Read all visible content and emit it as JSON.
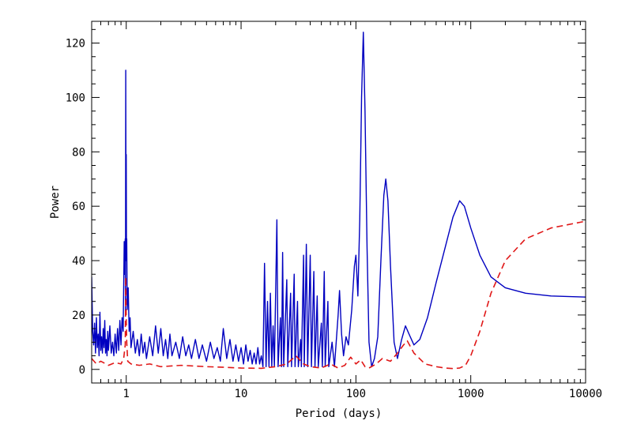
{
  "chart_data": {
    "type": "line",
    "title": "",
    "xlabel": "Period (days)",
    "ylabel": "Power",
    "xscale": "log",
    "xlim": [
      0.5,
      10000
    ],
    "ylim": [
      -5,
      128
    ],
    "x_ticks": [
      1,
      10,
      100,
      1000,
      10000
    ],
    "x_tick_labels": [
      "1",
      "10",
      "100",
      "1000",
      "10000"
    ],
    "y_ticks": [
      0,
      20,
      40,
      60,
      80,
      100,
      120
    ],
    "y_tick_labels": [
      "0",
      "20",
      "40",
      "60",
      "80",
      "100",
      "120"
    ],
    "grid": false,
    "legend": "none",
    "series": [
      {
        "style": "solid",
        "color": "#0000c0",
        "points": [
          [
            0.5,
            34
          ],
          [
            0.51,
            14
          ],
          [
            0.52,
            9
          ],
          [
            0.53,
            17
          ],
          [
            0.54,
            6
          ],
          [
            0.55,
            19
          ],
          [
            0.56,
            8
          ],
          [
            0.57,
            13
          ],
          [
            0.58,
            5
          ],
          [
            0.59,
            21
          ],
          [
            0.6,
            7
          ],
          [
            0.61,
            12
          ],
          [
            0.62,
            6
          ],
          [
            0.63,
            15
          ],
          [
            0.64,
            8
          ],
          [
            0.65,
            18
          ],
          [
            0.66,
            6
          ],
          [
            0.67,
            11
          ],
          [
            0.68,
            5
          ],
          [
            0.69,
            14
          ],
          [
            0.7,
            7
          ],
          [
            0.72,
            16
          ],
          [
            0.74,
            6
          ],
          [
            0.76,
            10
          ],
          [
            0.78,
            5
          ],
          [
            0.8,
            13
          ],
          [
            0.82,
            6
          ],
          [
            0.84,
            15
          ],
          [
            0.86,
            7
          ],
          [
            0.88,
            18
          ],
          [
            0.9,
            9
          ],
          [
            0.92,
            19
          ],
          [
            0.94,
            14
          ],
          [
            0.96,
            47
          ],
          [
            0.97,
            35
          ],
          [
            0.98,
            48
          ],
          [
            0.985,
            20
          ],
          [
            0.99,
            110
          ],
          [
            0.995,
            60
          ],
          [
            1.0,
            79
          ],
          [
            1.005,
            40
          ],
          [
            1.01,
            48
          ],
          [
            1.02,
            22
          ],
          [
            1.04,
            30
          ],
          [
            1.06,
            14
          ],
          [
            1.08,
            19
          ],
          [
            1.1,
            8
          ],
          [
            1.15,
            14
          ],
          [
            1.2,
            6
          ],
          [
            1.25,
            11
          ],
          [
            1.3,
            5
          ],
          [
            1.35,
            13
          ],
          [
            1.4,
            6
          ],
          [
            1.45,
            10
          ],
          [
            1.5,
            4
          ],
          [
            1.6,
            12
          ],
          [
            1.7,
            5
          ],
          [
            1.8,
            16
          ],
          [
            1.9,
            6
          ],
          [
            2.0,
            15
          ],
          [
            2.1,
            5
          ],
          [
            2.2,
            11
          ],
          [
            2.3,
            4
          ],
          [
            2.4,
            13
          ],
          [
            2.5,
            5
          ],
          [
            2.7,
            10
          ],
          [
            2.9,
            4
          ],
          [
            3.1,
            12
          ],
          [
            3.3,
            5
          ],
          [
            3.5,
            9
          ],
          [
            3.7,
            4
          ],
          [
            4.0,
            11
          ],
          [
            4.3,
            4
          ],
          [
            4.6,
            9
          ],
          [
            5.0,
            3
          ],
          [
            5.4,
            10
          ],
          [
            5.8,
            4
          ],
          [
            6.2,
            8
          ],
          [
            6.6,
            3
          ],
          [
            7.0,
            15
          ],
          [
            7.5,
            4
          ],
          [
            8.0,
            11
          ],
          [
            8.5,
            3
          ],
          [
            9.0,
            9
          ],
          [
            9.5,
            3
          ],
          [
            10.0,
            8
          ],
          [
            10.5,
            2
          ],
          [
            11.0,
            9
          ],
          [
            11.5,
            3
          ],
          [
            12.0,
            7
          ],
          [
            12.5,
            2
          ],
          [
            13.0,
            6
          ],
          [
            13.5,
            2
          ],
          [
            14.0,
            8
          ],
          [
            14.5,
            2
          ],
          [
            15.0,
            5
          ],
          [
            15.5,
            1
          ],
          [
            16.0,
            39
          ],
          [
            16.5,
            1
          ],
          [
            17.0,
            25
          ],
          [
            17.5,
            1
          ],
          [
            18.0,
            28
          ],
          [
            18.5,
            1
          ],
          [
            19.0,
            16
          ],
          [
            19.5,
            1
          ],
          [
            20.5,
            55
          ],
          [
            21.0,
            1
          ],
          [
            22.0,
            19
          ],
          [
            22.5,
            1
          ],
          [
            23.0,
            43
          ],
          [
            23.5,
            1
          ],
          [
            25.0,
            33
          ],
          [
            25.5,
            1
          ],
          [
            27.0,
            28
          ],
          [
            27.5,
            1
          ],
          [
            29.0,
            35
          ],
          [
            29.5,
            1
          ],
          [
            31.0,
            25
          ],
          [
            31.5,
            1
          ],
          [
            33.0,
            11
          ],
          [
            33.5,
            1
          ],
          [
            35.0,
            42
          ],
          [
            35.5,
            1
          ],
          [
            37.0,
            46
          ],
          [
            38.0,
            1
          ],
          [
            40.0,
            42
          ],
          [
            41.0,
            1
          ],
          [
            43.0,
            36
          ],
          [
            44.0,
            1
          ],
          [
            46.0,
            27
          ],
          [
            47.0,
            1
          ],
          [
            50.0,
            17
          ],
          [
            51.0,
            1
          ],
          [
            53.0,
            36
          ],
          [
            54.0,
            1
          ],
          [
            57.0,
            25
          ],
          [
            58.0,
            1
          ],
          [
            62.0,
            10
          ],
          [
            65.0,
            1
          ],
          [
            70.0,
            20
          ],
          [
            72.0,
            29
          ],
          [
            75.0,
            13
          ],
          [
            78.0,
            5
          ],
          [
            82.0,
            12
          ],
          [
            86.0,
            9
          ],
          [
            92.0,
            22
          ],
          [
            97.0,
            38
          ],
          [
            100.0,
            42
          ],
          [
            104.0,
            27
          ],
          [
            108.0,
            55
          ],
          [
            112.0,
            100
          ],
          [
            116.0,
            124
          ],
          [
            120.0,
            95
          ],
          [
            125.0,
            45
          ],
          [
            130.0,
            10
          ],
          [
            137.0,
            1
          ],
          [
            145.0,
            4
          ],
          [
            155.0,
            12
          ],
          [
            165.0,
            40
          ],
          [
            175.0,
            64
          ],
          [
            182.0,
            70
          ],
          [
            190.0,
            62
          ],
          [
            200.0,
            38
          ],
          [
            215.0,
            10
          ],
          [
            230.0,
            4
          ],
          [
            250.0,
            11
          ],
          [
            270.0,
            16
          ],
          [
            290.0,
            13
          ],
          [
            320.0,
            9
          ],
          [
            360.0,
            11
          ],
          [
            420.0,
            19
          ],
          [
            500.0,
            32
          ],
          [
            600.0,
            45
          ],
          [
            700.0,
            56
          ],
          [
            800.0,
            62
          ],
          [
            880.0,
            60
          ],
          [
            1000.0,
            52
          ],
          [
            1200.0,
            42
          ],
          [
            1500.0,
            34
          ],
          [
            2000.0,
            30
          ],
          [
            3000.0,
            28
          ],
          [
            5000.0,
            27
          ],
          [
            10000.0,
            26.6
          ]
        ]
      },
      {
        "style": "dashed",
        "color": "#e01818",
        "points": [
          [
            0.5,
            4
          ],
          [
            0.55,
            2
          ],
          [
            0.6,
            3
          ],
          [
            0.7,
            1.5
          ],
          [
            0.8,
            2.5
          ],
          [
            0.9,
            2
          ],
          [
            0.95,
            4
          ],
          [
            0.98,
            9
          ],
          [
            0.99,
            34
          ],
          [
            1.0,
            18
          ],
          [
            1.01,
            10
          ],
          [
            1.03,
            3
          ],
          [
            1.1,
            2
          ],
          [
            1.3,
            1.5
          ],
          [
            1.6,
            2
          ],
          [
            2.0,
            1
          ],
          [
            3.0,
            1.5
          ],
          [
            5.0,
            1
          ],
          [
            7.0,
            0.8
          ],
          [
            10.0,
            0.5
          ],
          [
            15.0,
            0.4
          ],
          [
            20.0,
            1
          ],
          [
            25.0,
            2
          ],
          [
            30.0,
            5
          ],
          [
            35.0,
            2
          ],
          [
            40.0,
            1
          ],
          [
            50.0,
            0.5
          ],
          [
            60.0,
            2
          ],
          [
            70.0,
            0.5
          ],
          [
            80.0,
            1.5
          ],
          [
            90.0,
            4.5
          ],
          [
            100.0,
            2
          ],
          [
            110.0,
            3.5
          ],
          [
            120.0,
            1
          ],
          [
            130.0,
            0.5
          ],
          [
            150.0,
            2
          ],
          [
            170.0,
            4
          ],
          [
            200.0,
            3
          ],
          [
            230.0,
            6
          ],
          [
            260.0,
            9
          ],
          [
            280.0,
            10.5
          ],
          [
            320.0,
            6
          ],
          [
            400.0,
            2
          ],
          [
            500.0,
            1
          ],
          [
            600.0,
            0.5
          ],
          [
            700.0,
            0.3
          ],
          [
            800.0,
            0.5
          ],
          [
            900.0,
            1.5
          ],
          [
            1000.0,
            5
          ],
          [
            1200.0,
            14
          ],
          [
            1500.0,
            28
          ],
          [
            2000.0,
            40
          ],
          [
            3000.0,
            48
          ],
          [
            5000.0,
            52
          ],
          [
            10000.0,
            54.5
          ]
        ]
      }
    ]
  }
}
